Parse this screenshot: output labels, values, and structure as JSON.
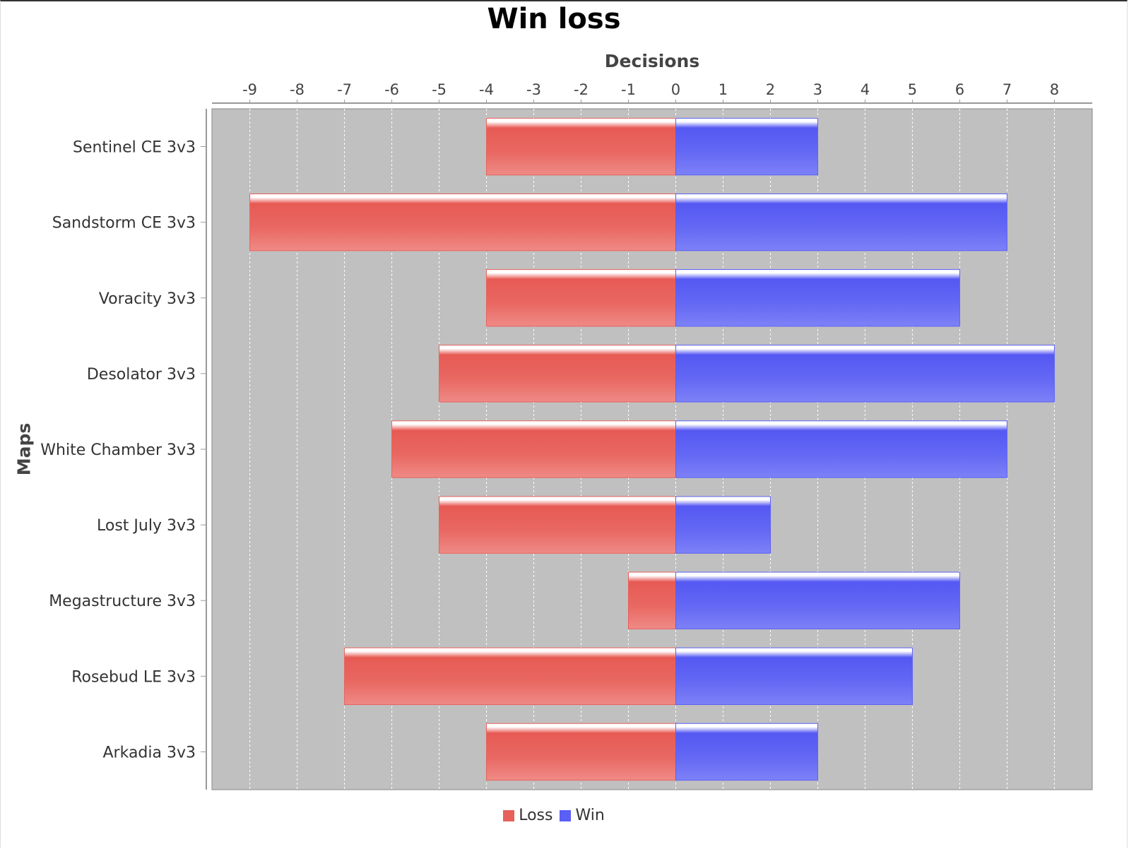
{
  "chart_data": {
    "type": "bar",
    "orientation": "horizontal",
    "stacked": "diverging",
    "title": "Win loss",
    "xlabel": "Decisions",
    "ylabel": "Maps",
    "xlim": [
      -9.8,
      8.8
    ],
    "xticks": [
      -9,
      -8,
      -7,
      -6,
      -5,
      -4,
      -3,
      -2,
      -1,
      0,
      1,
      2,
      3,
      4,
      5,
      6,
      7,
      8
    ],
    "grid": true,
    "legend_position": "bottom",
    "categories": [
      "Sentinel CE 3v3",
      "Sandstorm CE 3v3",
      "Voracity 3v3",
      "Desolator 3v3",
      "White Chamber 3v3",
      "Lost July 3v3",
      "Megastructure 3v3",
      "Rosebud LE 3v3",
      "Arkadia 3v3"
    ],
    "series": [
      {
        "name": "Loss",
        "color": "#e8605a",
        "values": [
          -4,
          -9,
          -4,
          -5,
          -6,
          -5,
          -1,
          -7,
          -4
        ]
      },
      {
        "name": "Win",
        "color": "#5b5ff5",
        "values": [
          3,
          7,
          6,
          8,
          7,
          2,
          6,
          5,
          3
        ]
      }
    ]
  }
}
